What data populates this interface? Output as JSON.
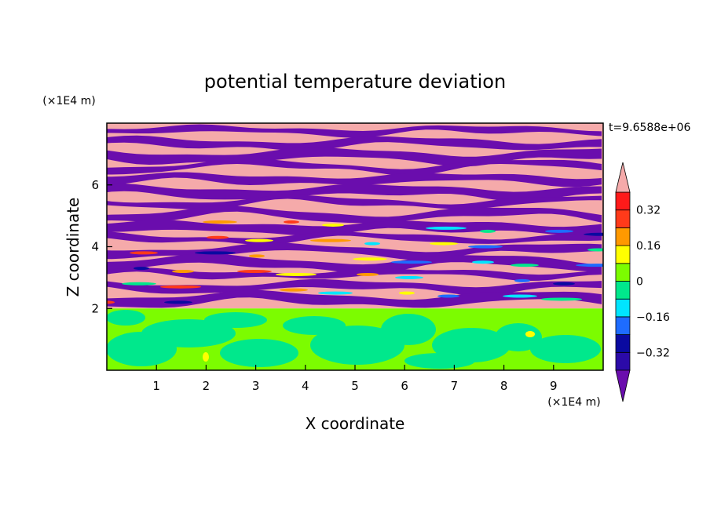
{
  "chart_data": {
    "type": "heatmap",
    "title": "potential temperature deviation",
    "xlabel": "X coordinate",
    "ylabel": "Z coordinate",
    "x_unit": "(×1E4 m)",
    "y_unit": "(×1E4 m)",
    "xlim": [
      0,
      10
    ],
    "ylim": [
      0,
      8
    ],
    "x_ticks": [
      1,
      2,
      3,
      4,
      5,
      6,
      7,
      8,
      9
    ],
    "y_ticks": [
      2,
      4,
      6
    ],
    "time_label": "t=9.6588e+06",
    "colorbar": {
      "levels": [
        -0.4,
        -0.32,
        -0.24,
        -0.16,
        -0.08,
        0,
        0.08,
        0.16,
        0.24,
        0.32,
        0.4
      ],
      "tick_labels": [
        "0.32",
        "0.16",
        "0",
        "−0.16",
        "−0.32"
      ],
      "tick_values": [
        0.32,
        0.16,
        0,
        -0.16,
        -0.32
      ],
      "colors": [
        "#6a0dad",
        "#2b0aa8",
        "#0a0aa0",
        "#1e6cff",
        "#00e5ff",
        "#00e88c",
        "#7cfc00",
        "#ffff00",
        "#ff9900",
        "#ff3a1a",
        "#ff1a1a",
        "#f5aaaa"
      ],
      "extend": "both"
    },
    "field": {
      "lower_layer": {
        "z_range": [
          0,
          2
        ],
        "dominant_values": [
          0,
          0.08
        ],
        "note_colors": [
          "#00e88c",
          "#7cfc00"
        ]
      },
      "upper_layer": {
        "z_range": [
          2,
          8
        ],
        "dominant_values": [
          -0.4,
          0.4
        ],
        "note_colors": [
          "#6a0dad",
          "#f5aaaa"
        ]
      }
    }
  }
}
